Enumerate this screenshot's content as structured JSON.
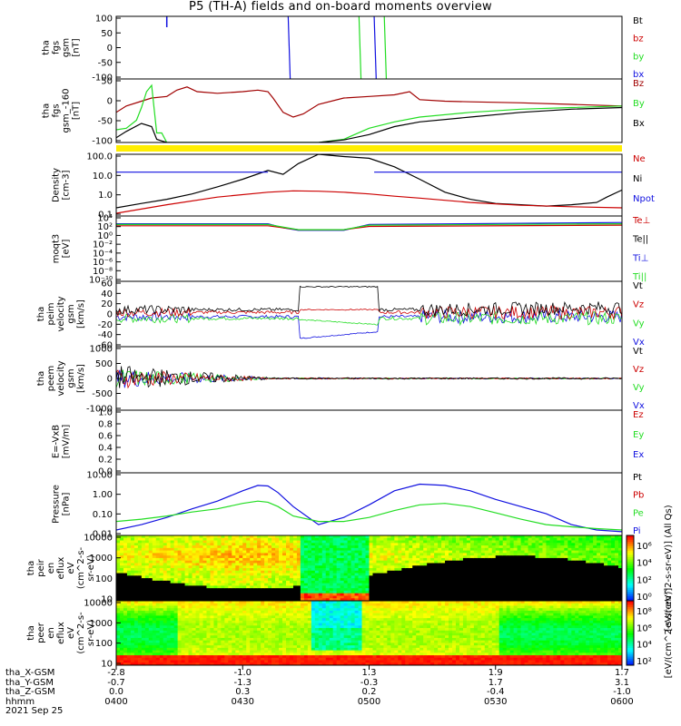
{
  "title": "P5 (TH-A) fields and on-board moments overview",
  "colors": {
    "black": "#000000",
    "red": "#cc0000",
    "darkred": "#a00000",
    "green": "#22dd22",
    "blue": "#1010e0",
    "yellow": "#ffee00"
  },
  "chart_data": [
    {
      "type": "line",
      "id": "fgs_gsm",
      "ylabel": [
        "tha",
        "fgs",
        "gsm",
        "[nT]"
      ],
      "yticks": [
        "100",
        "50",
        "0",
        "-50",
        "-100"
      ],
      "ylim": [
        -100,
        100
      ],
      "legend": [
        "Bt",
        "bz",
        "by",
        "bx"
      ],
      "legend_colors": [
        "black",
        "red",
        "green",
        "blue"
      ]
    },
    {
      "type": "line",
      "id": "fgs_gsm_clip",
      "ylabel": [
        "tha",
        "fgs",
        "gsm_-160",
        "[nT]"
      ],
      "yticks": [
        "50",
        "0",
        "-50",
        "-100"
      ],
      "ylim": [
        -120,
        80
      ],
      "legend": [
        "Bz",
        "By",
        "Bx"
      ],
      "legend_colors": [
        "darkred",
        "green",
        "black"
      ],
      "series": [
        {
          "name": "Bz",
          "color": "darkred",
          "x": [
            0.0,
            0.02,
            0.05,
            0.07,
            0.1,
            0.12,
            0.14,
            0.16,
            0.2,
            0.25,
            0.28,
            0.3,
            0.31,
            0.33,
            0.35,
            0.37,
            0.4,
            0.45,
            0.5,
            0.55,
            0.58,
            0.6,
            0.65,
            0.7,
            0.8,
            0.9,
            1.0
          ],
          "y": [
            -25,
            -5,
            10,
            20,
            25,
            45,
            55,
            40,
            35,
            40,
            45,
            40,
            20,
            -25,
            -40,
            -30,
            0,
            20,
            25,
            30,
            40,
            15,
            10,
            8,
            5,
            0,
            -5
          ]
        },
        {
          "name": "By",
          "color": "green",
          "x": [
            0.0,
            0.02,
            0.04,
            0.05,
            0.06,
            0.07,
            0.08,
            0.09,
            0.1,
            0.12,
            0.15,
            0.2,
            0.25,
            0.3,
            0.4,
            0.45,
            0.5,
            0.55,
            0.6,
            0.7,
            0.8,
            0.9,
            1.0
          ],
          "y": [
            -80,
            -75,
            -50,
            -10,
            40,
            60,
            -90,
            -90,
            -120,
            -120,
            -120,
            -120,
            -120,
            -120,
            -120,
            -110,
            -75,
            -55,
            -40,
            -25,
            -15,
            -10,
            -5
          ]
        },
        {
          "name": "Bx",
          "color": "black",
          "x": [
            0.0,
            0.02,
            0.05,
            0.07,
            0.08,
            0.09,
            0.1,
            0.12,
            0.15,
            0.2,
            0.25,
            0.3,
            0.4,
            0.45,
            0.5,
            0.55,
            0.6,
            0.7,
            0.8,
            0.9,
            1.0
          ],
          "y": [
            -105,
            -85,
            -60,
            -70,
            -110,
            -115,
            -120,
            -120,
            -120,
            -120,
            -120,
            -120,
            -120,
            -112,
            -95,
            -70,
            -55,
            -40,
            -25,
            -15,
            -10
          ]
        }
      ]
    },
    {
      "type": "line",
      "id": "density",
      "log": true,
      "ylabel": [
        "Density",
        "[cm-3]"
      ],
      "yticks": [
        "100.0",
        "10.0",
        "1.0",
        "0.1"
      ],
      "ylim": [
        0.07,
        200
      ],
      "legend": [
        "Ne",
        "Ni",
        "Npot"
      ],
      "legend_colors": [
        "red",
        "black",
        "blue"
      ],
      "series": [
        {
          "name": "Ni",
          "color": "black",
          "x": [
            0.0,
            0.05,
            0.1,
            0.15,
            0.2,
            0.25,
            0.3,
            0.33,
            0.36,
            0.4,
            0.45,
            0.5,
            0.55,
            0.6,
            0.65,
            0.7,
            0.75,
            0.8,
            0.85,
            0.9,
            0.95,
            0.97,
            1.0
          ],
          "y": [
            0.2,
            0.35,
            0.6,
            1.2,
            3,
            8,
            25,
            15,
            60,
            200,
            150,
            120,
            40,
            8,
            1.5,
            0.6,
            0.35,
            0.3,
            0.25,
            0.3,
            0.4,
            0.8,
            2
          ]
        },
        {
          "name": "Ne",
          "color": "red",
          "x": [
            0.0,
            0.1,
            0.2,
            0.3,
            0.35,
            0.4,
            0.45,
            0.5,
            0.55,
            0.6,
            0.7,
            0.8,
            0.9,
            1.0
          ],
          "y": [
            0.1,
            0.3,
            0.8,
            1.5,
            1.8,
            1.7,
            1.5,
            1.2,
            0.9,
            0.7,
            0.4,
            0.28,
            0.23,
            0.2
          ]
        },
        {
          "name": "Npot",
          "color": "blue",
          "x": [
            0.0,
            0.3,
            0.31,
            0.5,
            0.51,
            1.0
          ],
          "y": [
            20,
            20,
            null,
            null,
            20,
            20
          ]
        }
      ]
    },
    {
      "type": "line",
      "id": "temperature",
      "log": true,
      "ylabel": [
        "moqt3",
        "[eV]"
      ],
      "yticks": [
        "10⁴",
        "10²",
        "10⁰",
        "10⁻²",
        "10⁻⁴",
        "10⁻⁶",
        "10⁻⁸",
        "10⁻¹⁰"
      ],
      "legend": [
        "Te⊥",
        "Te||",
        "Ti⊥",
        "Ti||"
      ],
      "legend_colors": [
        "red",
        "black",
        "blue",
        "green"
      ]
    },
    {
      "type": "line",
      "id": "peim_velocity",
      "ylabel": [
        "tha",
        "peim",
        "velocity",
        "gsm",
        "[km/s]"
      ],
      "yticks": [
        "60",
        "40",
        "20",
        "0",
        "-20",
        "-40",
        "-60"
      ],
      "ylim": [
        -60,
        60
      ],
      "legend": [
        "Vt",
        "Vz",
        "Vy",
        "Vx"
      ],
      "legend_colors": [
        "black",
        "red",
        "green",
        "blue"
      ]
    },
    {
      "type": "line",
      "id": "peem_velocity",
      "ylabel": [
        "tha",
        "peem",
        "velocity",
        "gsm",
        "[km/s]"
      ],
      "yticks": [
        "1000",
        "500",
        "0",
        "-500",
        "-1000"
      ],
      "ylim": [
        -1000,
        1000
      ],
      "legend": [
        "Vt",
        "Vz",
        "Vy",
        "Vx"
      ],
      "legend_colors": [
        "black",
        "red",
        "green",
        "blue"
      ]
    },
    {
      "type": "line",
      "id": "efield",
      "ylabel": [
        "E=-VxB",
        "[mV/m]"
      ],
      "yticks": [
        "1.0",
        "0.8",
        "0.6",
        "0.4",
        "0.2",
        "0.0"
      ],
      "ylim": [
        0,
        1
      ],
      "legend": [
        "Ez",
        "Ey",
        "Ex"
      ],
      "legend_colors": [
        "red",
        "green",
        "blue"
      ]
    },
    {
      "type": "line",
      "id": "pressure",
      "log": true,
      "ylabel": [
        "Pressure",
        "[nPa]"
      ],
      "yticks": [
        "10.00",
        "1.00",
        "0.10",
        "0.01"
      ],
      "ylim": [
        0.005,
        15
      ],
      "legend": [
        "Pt",
        "Pb",
        "Pe",
        "Pi"
      ],
      "legend_colors": [
        "black",
        "red",
        "green",
        "blue"
      ],
      "series": [
        {
          "name": "Pi",
          "color": "blue",
          "x": [
            0.0,
            0.05,
            0.1,
            0.15,
            0.2,
            0.25,
            0.28,
            0.3,
            0.32,
            0.35,
            0.38,
            0.4,
            0.45,
            0.5,
            0.55,
            0.6,
            0.65,
            0.7,
            0.75,
            0.8,
            0.85,
            0.9,
            0.95,
            1.0
          ],
          "y": [
            0.01,
            0.02,
            0.05,
            0.15,
            0.4,
            1.5,
            3.0,
            2.8,
            1.2,
            0.2,
            0.05,
            0.02,
            0.05,
            0.25,
            1.5,
            3.5,
            3.0,
            1.5,
            0.5,
            0.2,
            0.08,
            0.02,
            0.01,
            0.008
          ]
        },
        {
          "name": "Pe",
          "color": "green",
          "x": [
            0.0,
            0.05,
            0.1,
            0.15,
            0.2,
            0.25,
            0.28,
            0.3,
            0.32,
            0.35,
            0.4,
            0.45,
            0.5,
            0.55,
            0.6,
            0.65,
            0.7,
            0.75,
            0.8,
            0.85,
            0.9,
            0.95,
            1.0
          ],
          "y": [
            0.03,
            0.04,
            0.06,
            0.1,
            0.15,
            0.3,
            0.4,
            0.35,
            0.2,
            0.06,
            0.03,
            0.03,
            0.05,
            0.12,
            0.25,
            0.3,
            0.2,
            0.09,
            0.04,
            0.02,
            0.015,
            0.012,
            0.01
          ]
        }
      ]
    },
    {
      "type": "heatmap",
      "id": "peir_eflux",
      "ylabel": [
        "tha",
        "peir",
        "en",
        "eflux",
        "eV",
        "(cm^2-s-",
        "sr-eV)"
      ],
      "yticks": [
        "10000",
        "1000",
        "100",
        "10"
      ],
      "colorbar_ticks": [
        "10⁶",
        "10⁴",
        "10²",
        "10⁰"
      ],
      "colorbar_label": "[eV/(cm^2-s-sr-eV)] (All Qs)"
    },
    {
      "type": "heatmap",
      "id": "peer_eflux",
      "ylabel": [
        "tha",
        "peer",
        "en",
        "eflux",
        "eV",
        "(cm^2-s-",
        "sr-eV)"
      ],
      "yticks": [
        "10000",
        "1000",
        "100",
        "10"
      ],
      "colorbar_ticks": [
        "10⁸",
        "10⁶",
        "10⁴",
        "10²"
      ],
      "colorbar_label": "[eV/(cm^2-s-sr-eV)]"
    }
  ],
  "footer": {
    "rows": [
      {
        "label": "tha_X-GSM",
        "values": [
          "-2.8",
          "-1.0",
          "1.3",
          "1.9",
          "1.7"
        ]
      },
      {
        "label": "tha_Y-GSM",
        "values": [
          "-0.7",
          "-1.3",
          "-0.3",
          "1.7",
          "3.1"
        ]
      },
      {
        "label": "tha_Z-GSM",
        "values": [
          "0.0",
          "0.3",
          "0.2",
          "-0.4",
          "-1.0"
        ]
      },
      {
        "label": "hhmm",
        "values": [
          "0400",
          "0430",
          "0500",
          "0530",
          "0600"
        ]
      }
    ],
    "date": "2021 Sep 25"
  }
}
